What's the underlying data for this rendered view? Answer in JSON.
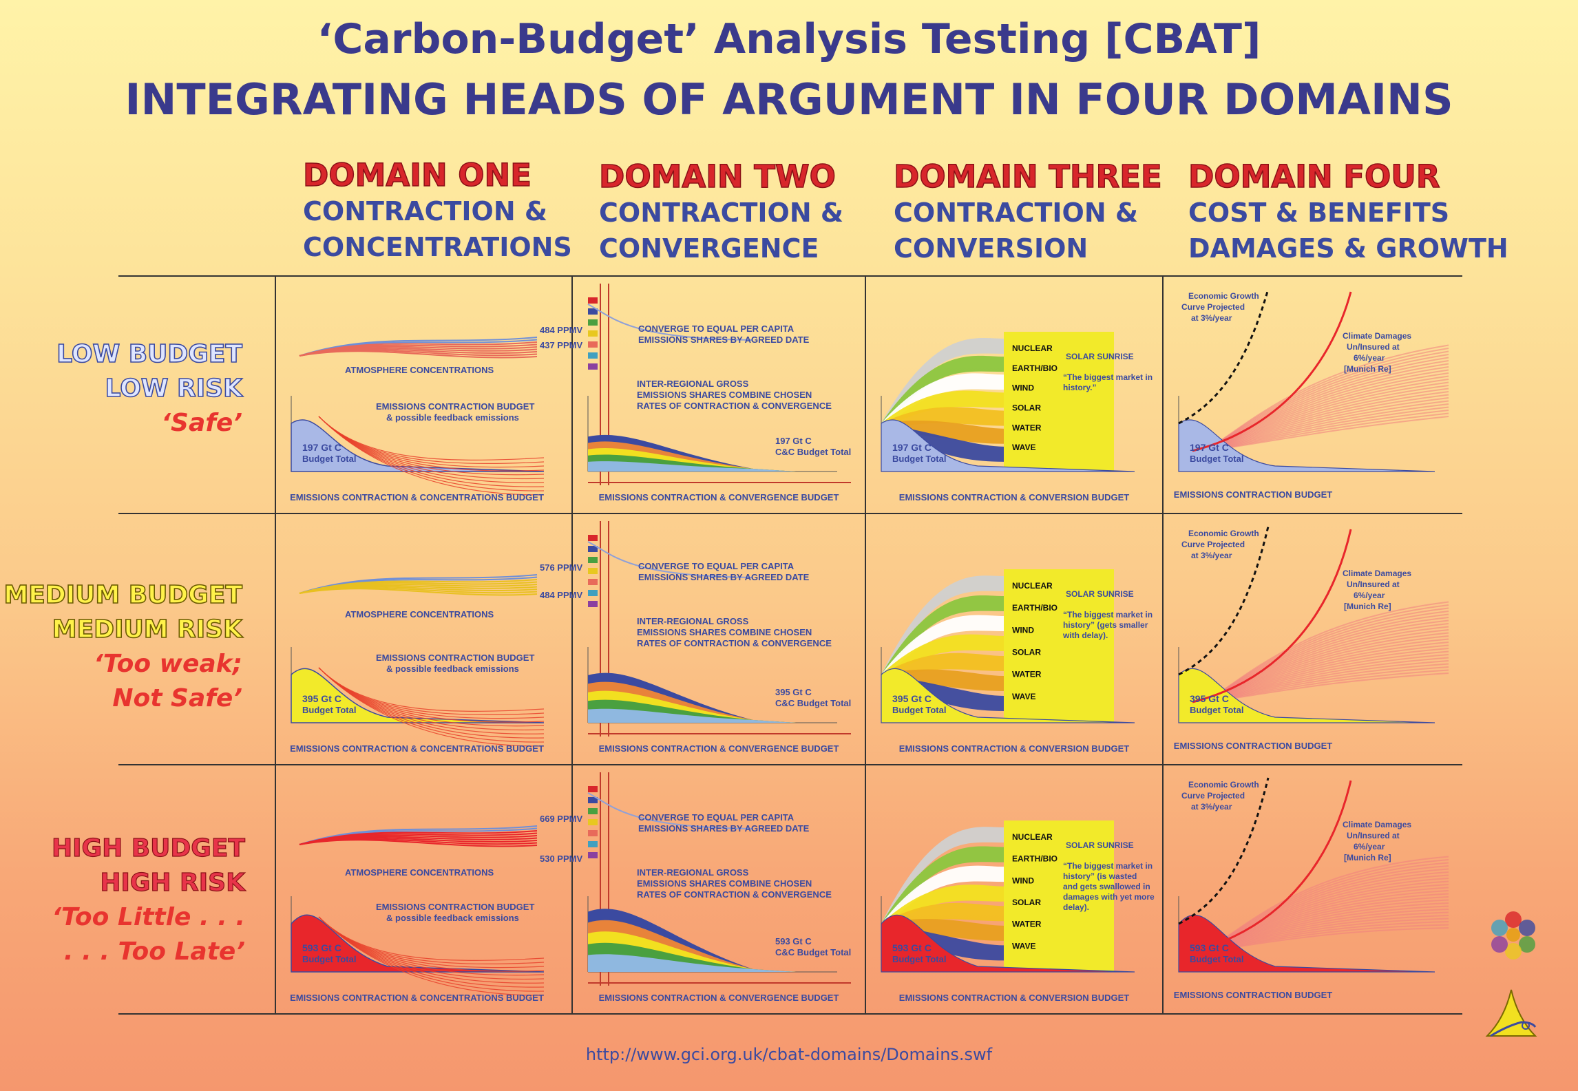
{
  "title_line1": "‘Carbon-Budget’ Analysis Testing [CBAT]",
  "title_line2": "INTEGRATING HEADS OF ARGUMENT IN FOUR DOMAINS",
  "domains": [
    {
      "head": "DOMAIN ONE",
      "sub1": "CONTRACTION &",
      "sub2": "CONCENTRATIONS"
    },
    {
      "head": "DOMAIN TWO",
      "sub1": "CONTRACTION &",
      "sub2": "CONVERGENCE"
    },
    {
      "head": "DOMAIN THREE",
      "sub1": "CONTRACTION &",
      "sub2": "CONVERSION"
    },
    {
      "head": "DOMAIN FOUR",
      "sub1": "COST & BENEFITS",
      "sub2": "DAMAGES & GROWTH"
    }
  ],
  "rows": [
    {
      "line1": "LOW BUDGET",
      "line2": "LOW RISK",
      "verdict1": "‘Safe’",
      "verdict2": "",
      "budget": "197 Gt C",
      "ppmv_high": "484 PPMV",
      "ppmv_low": "437 PPMV",
      "solar_text": "“The biggest market in history.”"
    },
    {
      "line1": "MEDIUM BUDGET",
      "line2": "MEDIUM RISK",
      "verdict1": "‘Too weak;",
      "verdict2": "Not Safe’",
      "budget": "395 Gt C",
      "ppmv_high": "576 PPMV",
      "ppmv_low": "484 PPMV",
      "solar_text": "“The biggest market in history” (gets smaller with delay)."
    },
    {
      "line1": "HIGH BUDGET",
      "line2": "HIGH RISK",
      "verdict1": "‘Too Little . . .",
      "verdict2": ". . . Too Late’",
      "budget": "593 Gt C",
      "ppmv_high": "669 PPMV",
      "ppmv_low": "530 PPMV",
      "solar_text": "“The biggest market in history” (is wasted and gets swallowed in damages with yet more delay)."
    }
  ],
  "labels": {
    "atmosphere": "ATMOSPHERE CONCENTRATIONS",
    "ecb1": "EMISSIONS CONTRACTION BUDGET",
    "ecb2": "& possible feedback emissions",
    "budget_total": "Budget Total",
    "cc_budget_total": "C&C Budget Total",
    "converge1": "CONVERGE TO EQUAL PER CAPITA",
    "converge2": "EMISSIONS SHARES BY AGREED DATE",
    "irg1": "INTER-REGIONAL GROSS",
    "irg2": "EMISSIONS SHARES COMBINE CHOSEN",
    "irg3": "RATES OF CONTRACTION & CONVERGENCE",
    "nuclear": "NUCLEAR",
    "earthbio": "EARTH/BIO",
    "wind": "WIND",
    "solar": "SOLAR",
    "water": "WATER",
    "wave": "WAVE",
    "solar_sunrise": "SOLAR SUNRISE",
    "econ1": "Economic Growth",
    "econ2": "Curve Projected",
    "econ3": "at 3%/year",
    "dmg1": "Climate Damages",
    "dmg2": "Un/Insured at",
    "dmg3": "6%/year",
    "dmg4": "[Munich Re]",
    "foot1": "EMISSIONS CONTRACTION & CONCENTRATIONS BUDGET",
    "foot2": "EMISSIONS CONTRACTION & CONVERGENCE BUDGET",
    "foot3": "EMISSIONS CONTRACTION & CONVERSION BUDGET",
    "foot4": "EMISSIONS CONTRACTION BUDGET"
  },
  "colors": {
    "low": "#a9b8e6",
    "medium": "#f2ea2a",
    "high": "#e8262b",
    "title": "#3a3a8c",
    "accent_red": "#d8262b"
  },
  "url": "http://www.gci.org.uk/cbat-domains/Domains.swf"
}
